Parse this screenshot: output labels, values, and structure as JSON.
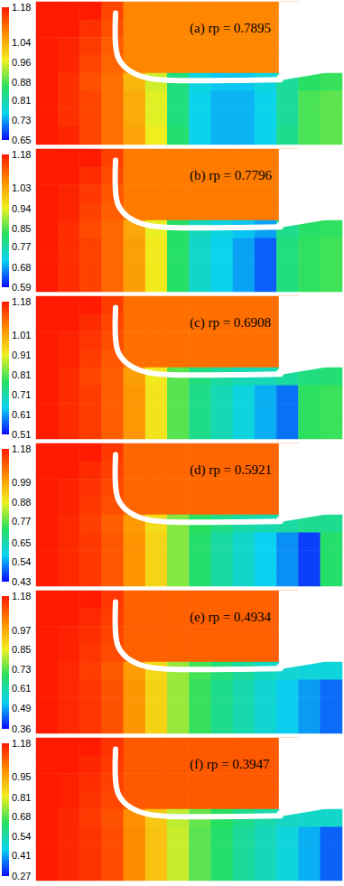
{
  "chart_data": [
    {
      "type": "heatmap",
      "title": "(a) rp = 0.7895",
      "colorbar": {
        "range": [
          0.65,
          1.18
        ],
        "ticks": [
          1.18,
          1.04,
          0.96,
          0.88,
          0.81,
          0.73,
          0.65
        ]
      },
      "cells": [
        [
          1.18,
          1.18,
          1.18,
          1.14,
          1.08,
          1.08,
          1.08,
          1.08,
          1.08,
          1.08,
          1.08,
          1.08,
          null,
          null
        ],
        [
          1.18,
          1.18,
          1.16,
          1.13,
          1.08,
          1.08,
          1.08,
          1.08,
          1.08,
          1.08,
          1.08,
          1.08,
          null,
          null
        ],
        [
          1.18,
          1.17,
          1.15,
          1.12,
          1.08,
          1.08,
          1.08,
          1.08,
          1.08,
          1.08,
          1.08,
          1.08,
          null,
          null
        ],
        [
          1.18,
          1.17,
          1.14,
          1.11,
          1.08,
          1.08,
          1.08,
          1.08,
          1.08,
          1.08,
          1.08,
          1.08,
          null,
          null
        ],
        [
          1.18,
          1.16,
          1.13,
          1.1,
          1.03,
          0.95,
          0.84,
          0.77,
          0.75,
          0.75,
          0.77,
          0.82,
          0.86,
          0.87
        ],
        [
          1.18,
          1.16,
          1.14,
          1.1,
          1.04,
          0.96,
          0.84,
          0.76,
          0.74,
          0.74,
          0.76,
          0.82,
          0.88,
          0.89
        ],
        [
          1.18,
          1.16,
          1.14,
          1.1,
          1.04,
          0.96,
          0.84,
          0.76,
          0.74,
          0.74,
          0.76,
          0.82,
          0.88,
          0.89
        ],
        [
          1.18,
          1.17,
          1.14,
          1.1,
          1.05,
          0.97,
          0.85,
          0.76,
          0.74,
          0.74,
          0.76,
          0.83,
          0.88,
          0.89
        ]
      ]
    },
    {
      "type": "heatmap",
      "title": "(b) rp = 0.7796",
      "colorbar": {
        "range": [
          0.59,
          1.18
        ],
        "ticks": [
          1.18,
          1.03,
          0.94,
          0.85,
          0.77,
          0.68,
          0.59
        ]
      },
      "cells": [
        [
          1.18,
          1.18,
          1.18,
          1.14,
          1.08,
          1.08,
          1.08,
          1.08,
          1.08,
          1.08,
          1.08,
          1.08,
          null,
          null
        ],
        [
          1.18,
          1.18,
          1.16,
          1.13,
          1.08,
          1.08,
          1.08,
          1.08,
          1.08,
          1.08,
          1.08,
          1.08,
          null,
          null
        ],
        [
          1.18,
          1.17,
          1.15,
          1.12,
          1.08,
          1.08,
          1.08,
          1.08,
          1.08,
          1.08,
          1.08,
          1.08,
          null,
          null
        ],
        [
          1.18,
          1.17,
          1.14,
          1.11,
          1.08,
          1.08,
          1.08,
          1.08,
          1.08,
          1.08,
          1.08,
          1.08,
          null,
          null
        ],
        [
          1.18,
          1.16,
          1.13,
          1.1,
          1.03,
          0.94,
          0.82,
          0.75,
          0.72,
          0.7,
          0.68,
          0.79,
          0.82,
          0.83
        ],
        [
          1.18,
          1.16,
          1.14,
          1.1,
          1.04,
          0.95,
          0.82,
          0.74,
          0.71,
          0.68,
          0.64,
          0.8,
          0.83,
          0.84
        ],
        [
          1.18,
          1.16,
          1.14,
          1.1,
          1.04,
          0.95,
          0.82,
          0.74,
          0.71,
          0.68,
          0.64,
          0.8,
          0.83,
          0.84
        ],
        [
          1.18,
          1.16,
          1.14,
          1.1,
          1.04,
          0.95,
          0.82,
          0.74,
          0.71,
          0.68,
          0.64,
          0.8,
          0.83,
          0.84
        ]
      ]
    },
    {
      "type": "heatmap",
      "title": "(c) rp = 0.6908",
      "colorbar": {
        "range": [
          0.51,
          1.18
        ],
        "ticks": [
          1.18,
          1.01,
          0.91,
          0.81,
          0.71,
          0.61,
          0.51
        ]
      },
      "cells": [
        [
          1.18,
          1.18,
          1.18,
          1.14,
          1.08,
          1.08,
          1.08,
          1.08,
          1.08,
          1.08,
          1.08,
          1.08,
          null,
          null
        ],
        [
          1.18,
          1.18,
          1.16,
          1.13,
          1.08,
          1.08,
          1.08,
          1.08,
          1.08,
          1.08,
          1.08,
          1.08,
          null,
          null
        ],
        [
          1.18,
          1.17,
          1.15,
          1.12,
          1.08,
          1.08,
          1.08,
          1.08,
          1.08,
          1.08,
          1.08,
          1.08,
          null,
          null
        ],
        [
          1.18,
          1.17,
          1.14,
          1.11,
          1.08,
          1.08,
          1.08,
          1.08,
          1.08,
          1.08,
          1.08,
          1.08,
          null,
          null
        ],
        [
          1.18,
          1.16,
          1.13,
          1.1,
          1.02,
          0.92,
          0.81,
          0.75,
          0.72,
          0.7,
          0.7,
          0.72,
          0.75,
          0.76
        ],
        [
          1.18,
          1.16,
          1.14,
          1.1,
          1.03,
          0.93,
          0.81,
          0.74,
          0.7,
          0.66,
          0.62,
          0.58,
          0.78,
          0.79
        ],
        [
          1.18,
          1.16,
          1.14,
          1.1,
          1.03,
          0.93,
          0.81,
          0.74,
          0.7,
          0.66,
          0.62,
          0.58,
          0.78,
          0.79
        ],
        [
          1.18,
          1.16,
          1.14,
          1.1,
          1.03,
          0.93,
          0.81,
          0.74,
          0.7,
          0.66,
          0.62,
          0.58,
          0.78,
          0.79
        ]
      ]
    },
    {
      "type": "heatmap",
      "title": "(d) rp = 0.5921",
      "colorbar": {
        "range": [
          0.43,
          1.18
        ],
        "ticks": [
          1.18,
          0.99,
          0.88,
          0.77,
          0.65,
          0.54,
          0.43
        ]
      },
      "cells": [
        [
          1.18,
          1.18,
          1.18,
          1.14,
          1.08,
          1.08,
          1.08,
          1.08,
          1.08,
          1.08,
          1.08,
          1.08,
          null,
          null
        ],
        [
          1.18,
          1.18,
          1.16,
          1.13,
          1.08,
          1.08,
          1.08,
          1.08,
          1.08,
          1.08,
          1.08,
          1.08,
          null,
          null
        ],
        [
          1.18,
          1.17,
          1.15,
          1.12,
          1.08,
          1.08,
          1.08,
          1.08,
          1.08,
          1.08,
          1.08,
          1.08,
          null,
          null
        ],
        [
          1.18,
          1.17,
          1.14,
          1.11,
          1.08,
          1.08,
          1.08,
          1.08,
          1.08,
          1.08,
          1.08,
          1.08,
          null,
          null
        ],
        [
          1.18,
          1.16,
          1.13,
          1.09,
          1.01,
          0.91,
          0.8,
          0.73,
          0.69,
          0.66,
          0.65,
          0.66,
          0.68,
          0.68
        ],
        [
          1.18,
          1.16,
          1.14,
          1.1,
          1.02,
          0.92,
          0.8,
          0.72,
          0.66,
          0.62,
          0.58,
          0.53,
          0.47,
          0.72
        ],
        [
          1.18,
          1.16,
          1.14,
          1.1,
          1.02,
          0.92,
          0.8,
          0.72,
          0.66,
          0.62,
          0.58,
          0.53,
          0.47,
          0.72
        ],
        [
          1.18,
          1.16,
          1.14,
          1.1,
          1.02,
          0.92,
          0.8,
          0.72,
          0.66,
          0.62,
          0.58,
          0.53,
          0.47,
          0.72
        ]
      ]
    },
    {
      "type": "heatmap",
      "title": "(e) rp = 0.4934",
      "colorbar": {
        "range": [
          0.36,
          1.18
        ],
        "ticks": [
          1.18,
          0.97,
          0.85,
          0.73,
          0.61,
          0.49,
          0.36
        ]
      },
      "cells": [
        [
          1.18,
          1.18,
          1.18,
          1.14,
          1.08,
          1.08,
          1.08,
          1.08,
          1.08,
          1.08,
          1.08,
          1.08,
          null,
          null
        ],
        [
          1.18,
          1.18,
          1.16,
          1.13,
          1.08,
          1.08,
          1.08,
          1.08,
          1.08,
          1.08,
          1.08,
          1.08,
          null,
          null
        ],
        [
          1.18,
          1.17,
          1.15,
          1.12,
          1.08,
          1.08,
          1.08,
          1.08,
          1.08,
          1.08,
          1.08,
          1.08,
          null,
          null
        ],
        [
          1.18,
          1.17,
          1.14,
          1.11,
          1.08,
          1.08,
          1.08,
          1.08,
          1.08,
          1.08,
          1.08,
          1.08,
          null,
          null
        ],
        [
          1.18,
          1.16,
          1.13,
          1.09,
          0.99,
          0.89,
          0.78,
          0.71,
          0.66,
          0.62,
          0.58,
          0.56,
          0.55,
          0.55
        ],
        [
          1.18,
          1.16,
          1.14,
          1.1,
          1.0,
          0.9,
          0.78,
          0.7,
          0.64,
          0.6,
          0.56,
          0.52,
          0.48,
          0.44
        ],
        [
          1.18,
          1.16,
          1.14,
          1.1,
          1.0,
          0.9,
          0.78,
          0.7,
          0.64,
          0.6,
          0.56,
          0.52,
          0.48,
          0.44
        ],
        [
          1.18,
          1.16,
          1.14,
          1.1,
          1.0,
          0.9,
          0.78,
          0.7,
          0.64,
          0.6,
          0.56,
          0.52,
          0.48,
          0.44
        ]
      ]
    },
    {
      "type": "heatmap",
      "title": "(f) rp = 0.3947",
      "colorbar": {
        "range": [
          0.27,
          1.18
        ],
        "ticks": [
          1.18,
          0.95,
          0.81,
          0.68,
          0.54,
          0.41,
          0.27
        ]
      },
      "cells": [
        [
          1.18,
          1.18,
          1.18,
          1.14,
          1.08,
          1.08,
          1.08,
          1.08,
          1.08,
          1.08,
          1.08,
          1.08,
          null,
          null
        ],
        [
          1.18,
          1.18,
          1.16,
          1.13,
          1.08,
          1.08,
          1.08,
          1.08,
          1.08,
          1.08,
          1.08,
          1.08,
          null,
          null
        ],
        [
          1.18,
          1.17,
          1.15,
          1.12,
          1.08,
          1.08,
          1.08,
          1.08,
          1.08,
          1.08,
          1.08,
          1.08,
          null,
          null
        ],
        [
          1.18,
          1.17,
          1.14,
          1.11,
          1.08,
          1.08,
          1.08,
          1.08,
          1.08,
          1.08,
          1.08,
          1.08,
          null,
          null
        ],
        [
          1.18,
          1.16,
          1.13,
          1.09,
          0.99,
          0.89,
          0.77,
          0.69,
          0.63,
          0.58,
          0.54,
          0.51,
          0.5,
          0.5
        ],
        [
          1.18,
          1.16,
          1.14,
          1.1,
          1.0,
          0.9,
          0.78,
          0.68,
          0.62,
          0.56,
          0.52,
          0.48,
          0.42,
          0.35
        ],
        [
          1.18,
          1.16,
          1.14,
          1.1,
          1.0,
          0.9,
          0.78,
          0.68,
          0.62,
          0.56,
          0.52,
          0.48,
          0.42,
          0.35
        ],
        [
          1.18,
          1.16,
          1.14,
          1.1,
          1.0,
          0.9,
          0.78,
          0.68,
          0.62,
          0.56,
          0.52,
          0.48,
          0.42,
          0.35
        ]
      ]
    }
  ]
}
